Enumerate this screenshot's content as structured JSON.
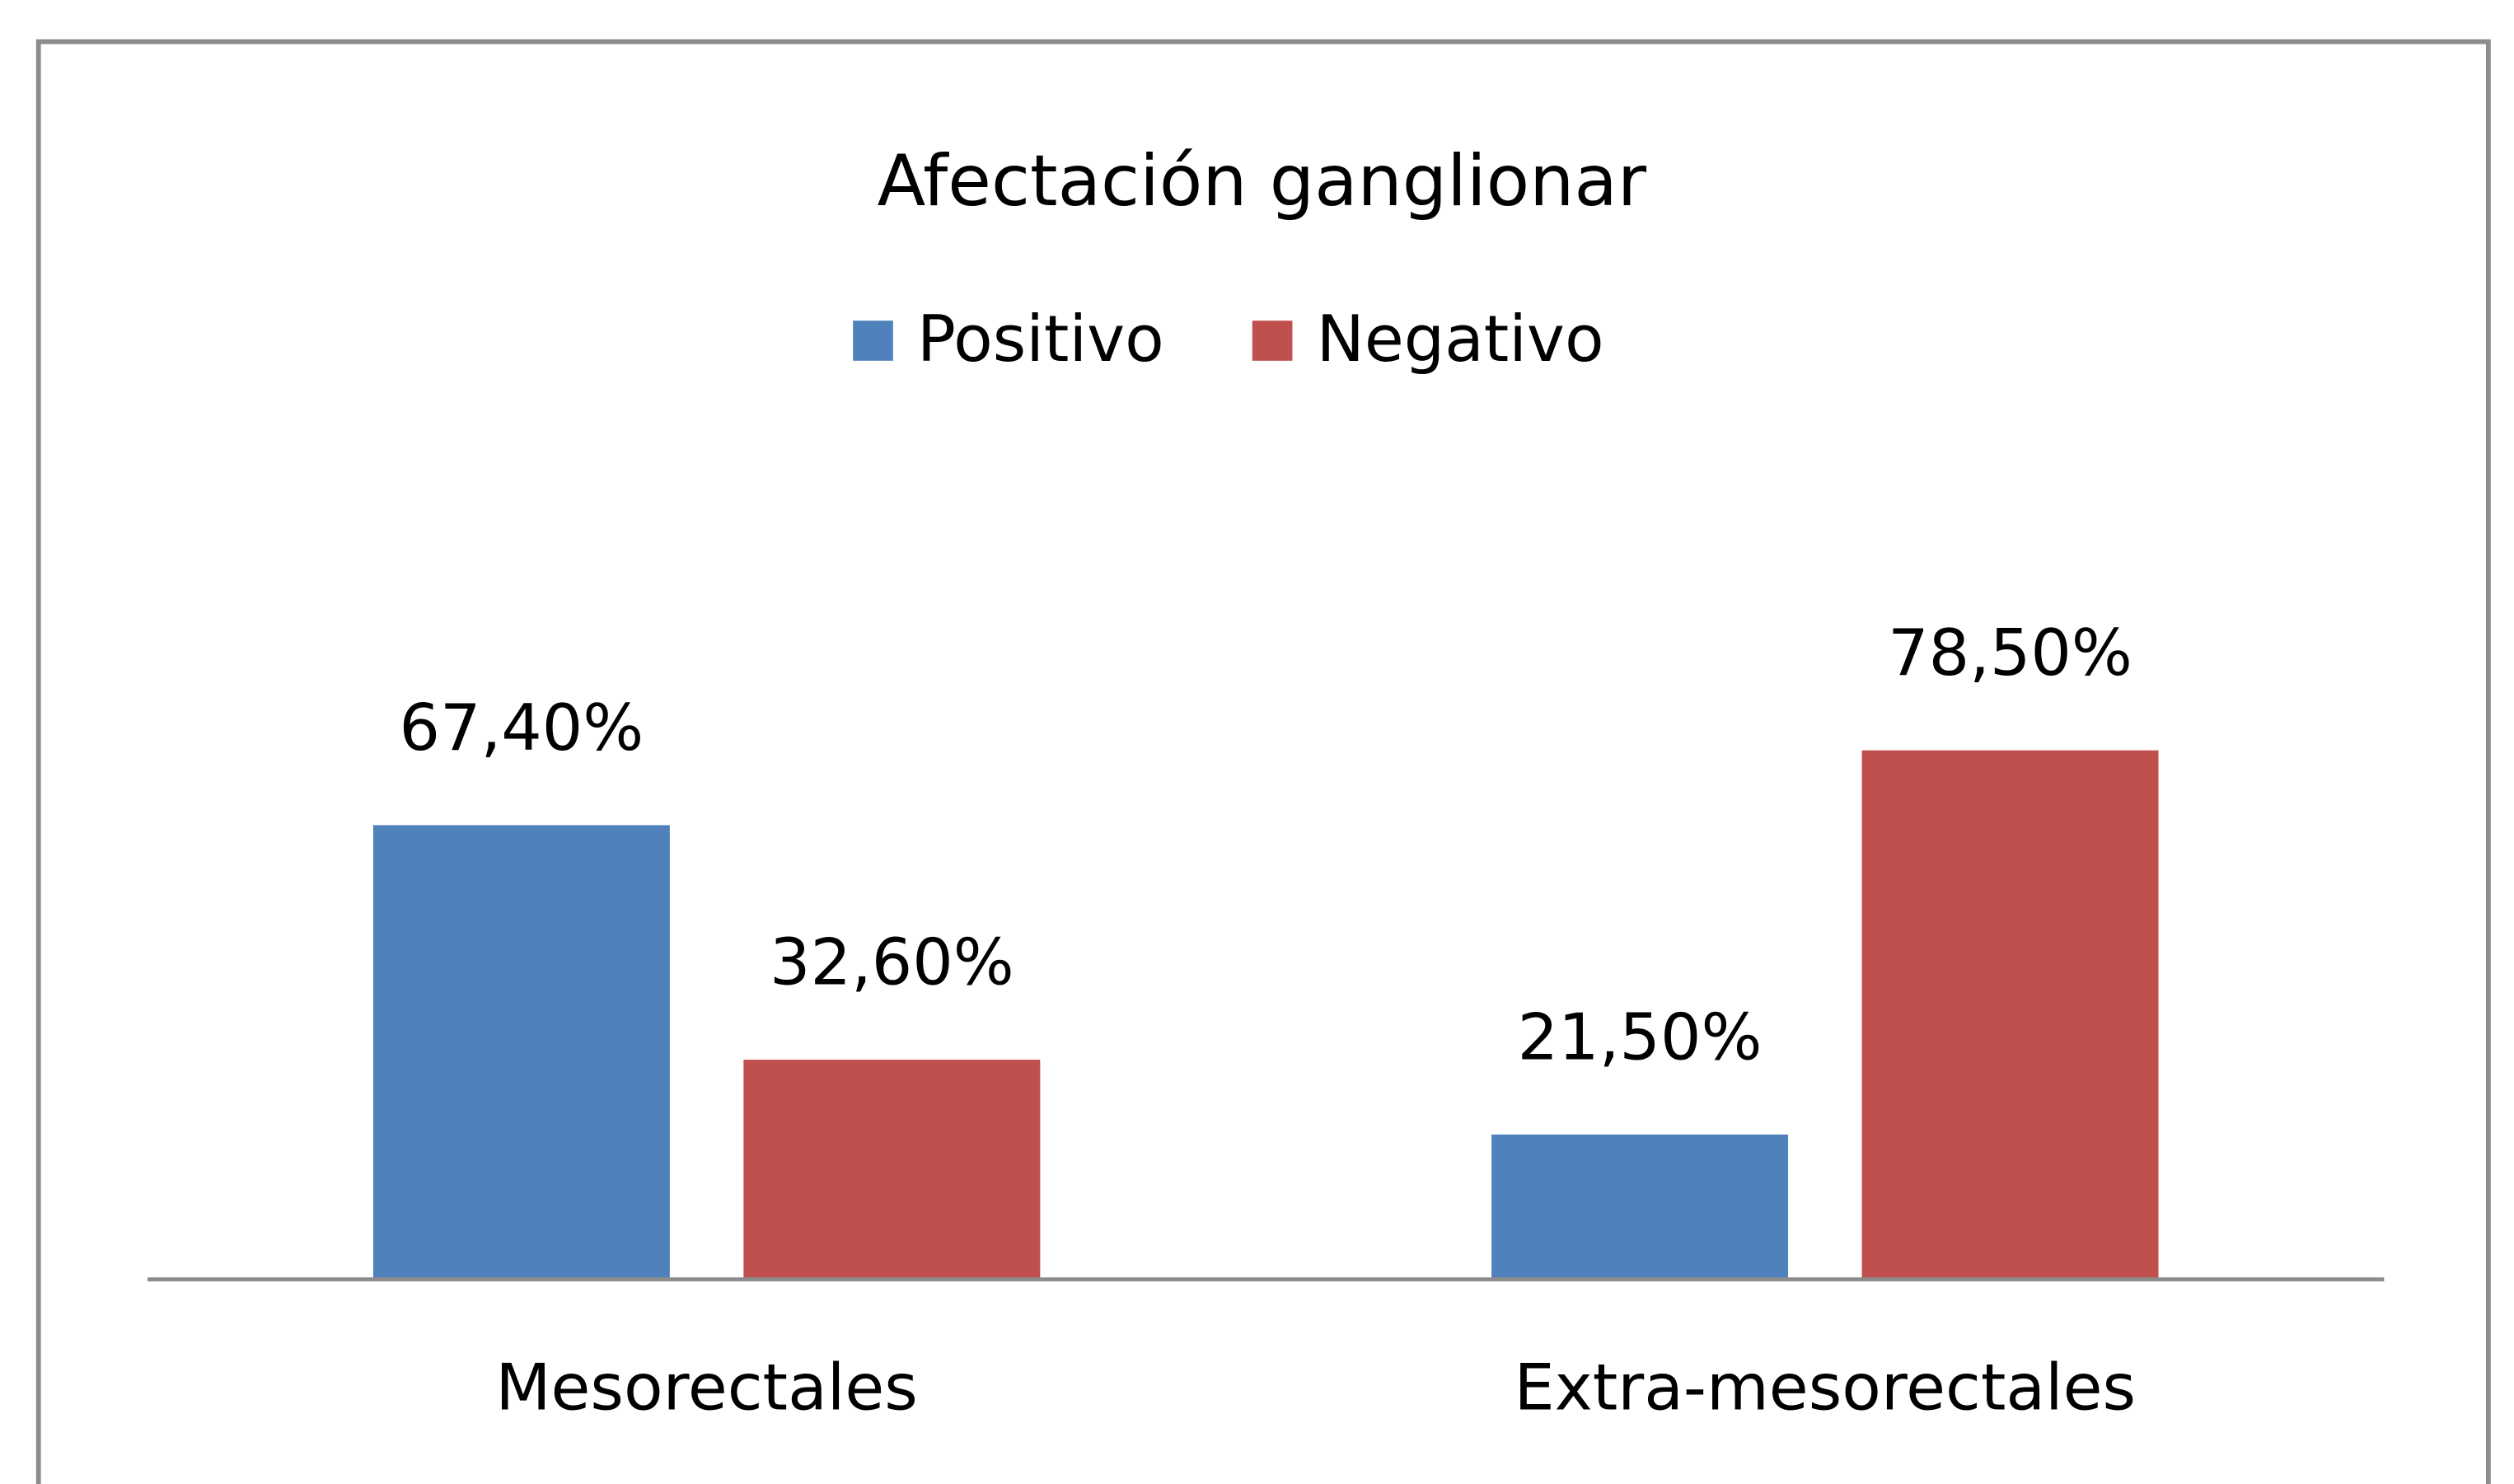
{
  "chart_data": {
    "type": "bar",
    "title": "Afectación ganglionar",
    "categories": [
      "Mesorectales",
      "Extra-mesorectales"
    ],
    "series": [
      {
        "name": "Positivo",
        "color": "#4f81bd",
        "values": [
          67.4,
          21.5
        ],
        "value_labels": [
          "67,40%",
          "21,50%"
        ]
      },
      {
        "name": "Negativo",
        "color": "#c0504d",
        "values": [
          32.6,
          78.5
        ],
        "value_labels": [
          "32,60%",
          "78,50%"
        ]
      }
    ],
    "legend": "top"
  }
}
